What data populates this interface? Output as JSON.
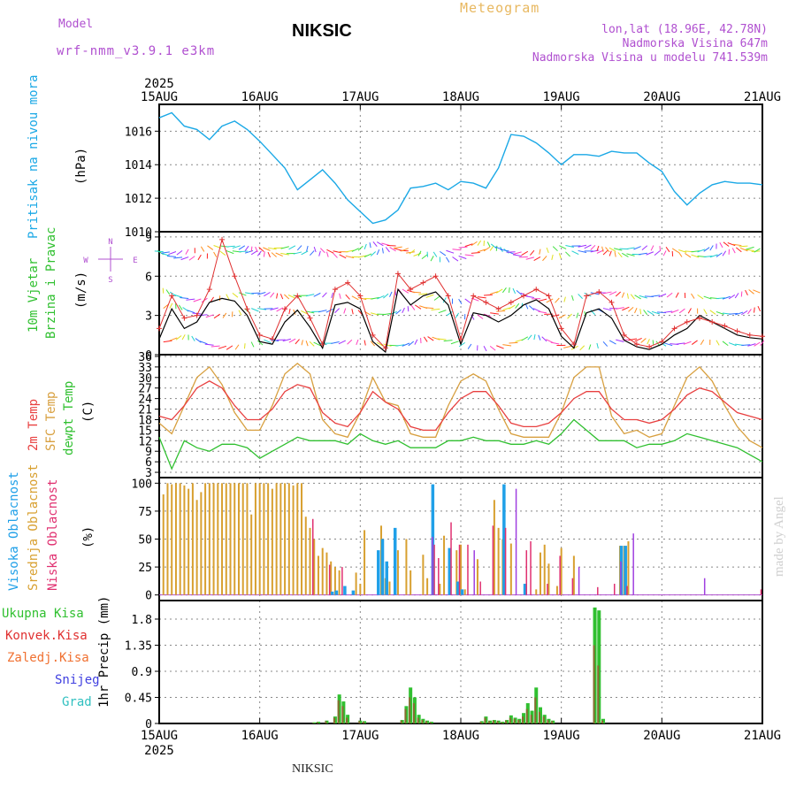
{
  "header": {
    "model_label": "Model",
    "model_name": "wrf-nmm_v3.9.1 e3km",
    "station": "NIKSIC",
    "product": "Meteogram",
    "lonlat": "lon,lat (18.96E, 42.78N)",
    "elevation": "Nadmorska Visina 647m",
    "model_elevation": "Nadmorska Visina u modelu 741.539m"
  },
  "colors": {
    "pressure": "#1aa8e6",
    "wind_speed": "#000000",
    "wind_gust": "#e03030",
    "t2m": "#e84040",
    "tsfc": "#d8a040",
    "dewpt": "#30c030",
    "cloud_high": "#20a0e8",
    "cloud_mid": "#d8a030",
    "cloud_low": "#e03070",
    "precip_total": "#30c030",
    "precip_conv": "#e03030",
    "precip_frozen": "#f07030",
    "precip_snow": "#4040e0",
    "precip_graupel": "#30c0c0"
  },
  "time_axis": {
    "year": "2025",
    "labels": [
      "15AUG",
      "16AUG",
      "17AUG",
      "18AUG",
      "19AUG",
      "20AUG",
      "21AUG"
    ],
    "hours_total": 144
  },
  "footer": "NIKSIC",
  "watermark": "made by Angel",
  "chart_data": [
    {
      "type": "line",
      "id": "pressure",
      "ylabel_main": "Pritisak na nivou mora",
      "ylabel_unit": "(hPa)",
      "ylim": [
        1010,
        1017.6
      ],
      "yticks": [
        "1010",
        "1012",
        "1014",
        "1016"
      ],
      "ytick_values": [
        1010,
        1012,
        1014,
        1016
      ],
      "x": [
        0,
        3,
        6,
        9,
        12,
        15,
        18,
        21,
        24,
        27,
        30,
        33,
        36,
        39,
        42,
        45,
        48,
        51,
        54,
        57,
        60,
        63,
        66,
        69,
        72,
        75,
        78,
        81,
        84,
        87,
        90,
        93,
        96,
        99,
        102,
        105,
        108,
        111,
        114,
        117,
        120,
        123,
        126,
        129,
        132,
        135,
        138,
        141,
        144
      ],
      "values": [
        1016.8,
        1017.1,
        1016.3,
        1016.1,
        1015.5,
        1016.3,
        1016.6,
        1016.1,
        1015.4,
        1014.6,
        1013.8,
        1012.5,
        1013.1,
        1013.7,
        1012.9,
        1011.9,
        1011.2,
        1010.5,
        1010.7,
        1011.3,
        1012.6,
        1012.7,
        1012.9,
        1012.5,
        1013.0,
        1012.9,
        1012.6,
        1013.8,
        1015.8,
        1015.7,
        1015.3,
        1014.7,
        1014.0,
        1014.6,
        1014.6,
        1014.5,
        1014.8,
        1014.7,
        1014.7,
        1014.1,
        1013.6,
        1012.4,
        1011.6,
        1012.3,
        1012.8,
        1013.0,
        1012.9,
        1012.9,
        1012.8
      ]
    },
    {
      "type": "line",
      "id": "wind",
      "ylabel_main": "10m Vjetar",
      "ylabel_sub": "Brzina i Pravac",
      "ylabel_unit": "(m/s)",
      "compass": [
        "N",
        "W",
        "E",
        "S"
      ],
      "ylim": [
        0,
        9.4
      ],
      "yticks": [
        "0",
        "3",
        "6",
        "9"
      ],
      "ytick_values": [
        0,
        3,
        6,
        9
      ],
      "x": [
        0,
        3,
        6,
        9,
        12,
        15,
        18,
        21,
        24,
        27,
        30,
        33,
        36,
        39,
        42,
        45,
        48,
        51,
        54,
        57,
        60,
        63,
        66,
        69,
        72,
        75,
        78,
        81,
        84,
        87,
        90,
        93,
        96,
        99,
        102,
        105,
        108,
        111,
        114,
        117,
        120,
        123,
        126,
        129,
        132,
        135,
        138,
        141,
        144
      ],
      "series": [
        {
          "name": "speed",
          "values": [
            1.2,
            3.5,
            2.0,
            2.5,
            4.0,
            4.3,
            4.1,
            3.0,
            1.0,
            0.8,
            2.5,
            3.4,
            2.1,
            0.5,
            3.8,
            4.0,
            3.5,
            1.0,
            0.2,
            5.0,
            3.8,
            4.5,
            4.8,
            3.8,
            0.8,
            3.2,
            3.0,
            2.5,
            3.0,
            3.8,
            4.2,
            3.5,
            1.4,
            0.5,
            3.2,
            3.5,
            2.8,
            1.1,
            0.6,
            0.4,
            0.8,
            1.5,
            2.0,
            3.0,
            2.5,
            2.0,
            1.5,
            1.3,
            1.2
          ]
        },
        {
          "name": "gust",
          "values": [
            2.0,
            4.5,
            2.8,
            3.0,
            5.0,
            8.8,
            6.0,
            3.5,
            1.5,
            1.2,
            3.5,
            4.5,
            2.8,
            0.8,
            5.0,
            5.5,
            4.5,
            1.5,
            0.5,
            6.2,
            5.0,
            5.5,
            6.0,
            4.5,
            1.2,
            4.5,
            4.0,
            3.5,
            4.0,
            4.5,
            5.0,
            4.5,
            2.0,
            0.8,
            4.5,
            4.8,
            4.0,
            1.5,
            0.8,
            0.6,
            1.0,
            2.0,
            2.5,
            2.8,
            2.5,
            2.2,
            1.8,
            1.5,
            1.4
          ]
        }
      ]
    },
    {
      "type": "line",
      "id": "temperature",
      "ylabel_lines": [
        "2m Temp",
        "SFC Temp",
        "dewpt Temp"
      ],
      "ylabel_unit": "(C)",
      "ylim": [
        1.5,
        36.5
      ],
      "yticks": [
        "3",
        "6",
        "9",
        "12",
        "15",
        "18",
        "21",
        "24",
        "27",
        "30",
        "33",
        "36"
      ],
      "ytick_values": [
        3,
        6,
        9,
        12,
        15,
        18,
        21,
        24,
        27,
        30,
        33,
        36
      ],
      "x": [
        0,
        3,
        6,
        9,
        12,
        15,
        18,
        21,
        24,
        27,
        30,
        33,
        36,
        39,
        42,
        45,
        48,
        51,
        54,
        57,
        60,
        63,
        66,
        69,
        72,
        75,
        78,
        81,
        84,
        87,
        90,
        93,
        96,
        99,
        102,
        105,
        108,
        111,
        114,
        117,
        120,
        123,
        126,
        129,
        132,
        135,
        138,
        141,
        144
      ],
      "series": [
        {
          "name": "t2m",
          "values": [
            19,
            18,
            22,
            27,
            29,
            27,
            22,
            18,
            18,
            21,
            26,
            28,
            27,
            20,
            17,
            16,
            20,
            26,
            23,
            21,
            16,
            15,
            15,
            20,
            24,
            26,
            26,
            22,
            17,
            16,
            16,
            17,
            20,
            24,
            26,
            26,
            21,
            18,
            18,
            17,
            18,
            21,
            25,
            27,
            26,
            23,
            20,
            19,
            18
          ]
        },
        {
          "name": "tsfc",
          "values": [
            17,
            14,
            22,
            30,
            33,
            28,
            20,
            15,
            15,
            22,
            31,
            34,
            31,
            18,
            14,
            13,
            20,
            30,
            23,
            22,
            14,
            13,
            13,
            22,
            29,
            31,
            29,
            21,
            14,
            13,
            13,
            13,
            20,
            30,
            33,
            33,
            19,
            14,
            15,
            13,
            14,
            22,
            30,
            33,
            29,
            22,
            16,
            12,
            10
          ]
        },
        {
          "name": "dewpt",
          "values": [
            13,
            4,
            12,
            10,
            9,
            11,
            11,
            10,
            7,
            9,
            11,
            13,
            12,
            12,
            12,
            11,
            14,
            12,
            11,
            12,
            10,
            10,
            10,
            12,
            12,
            13,
            12,
            12,
            11,
            11,
            12,
            11,
            14,
            18,
            15,
            12,
            12,
            12,
            10,
            11,
            11,
            12,
            14,
            13,
            12,
            11,
            10,
            8,
            6
          ]
        }
      ]
    },
    {
      "type": "bar",
      "id": "cloud",
      "ylabel_lines": [
        "Visoka Oblacnost",
        "Srednja Oblacnost",
        "Niska Oblacnost"
      ],
      "ylabel_unit": "(%)",
      "ylim": [
        -5,
        105
      ],
      "yticks": [
        "0",
        "25",
        "50",
        "75",
        "100"
      ],
      "ytick_values": [
        0,
        25,
        50,
        75,
        100
      ],
      "series": [
        {
          "name": "mid",
          "x": [
            1,
            2,
            3,
            4,
            5,
            6,
            7,
            8,
            9,
            10,
            11,
            12,
            13,
            14,
            15,
            16,
            17,
            18,
            19,
            20,
            21,
            22,
            23,
            24,
            25,
            26,
            27,
            28,
            29,
            30,
            31,
            32,
            33,
            34,
            35,
            36,
            37,
            38,
            39,
            40,
            41,
            42,
            43,
            47,
            48,
            49,
            53,
            54,
            55,
            57,
            59,
            60,
            63,
            64,
            67,
            68,
            71,
            72,
            73,
            76,
            80,
            81,
            82,
            84,
            90,
            91,
            92,
            93,
            95,
            96,
            99,
            110,
            111,
            112
          ],
          "values": [
            90,
            100,
            99,
            100,
            100,
            98,
            95,
            100,
            85,
            92,
            100,
            100,
            100,
            100,
            100,
            100,
            100,
            100,
            100,
            100,
            100,
            72,
            100,
            100,
            100,
            100,
            95,
            100,
            100,
            100,
            100,
            98,
            100,
            100,
            70,
            60,
            50,
            35,
            42,
            38,
            30,
            25,
            22,
            20,
            10,
            58,
            62,
            15,
            12,
            40,
            50,
            22,
            36,
            15,
            10,
            53,
            40,
            45,
            5,
            32,
            85,
            60,
            50,
            46,
            5,
            38,
            45,
            28,
            8,
            42,
            35,
            44,
            44,
            48
          ]
        },
        {
          "name": "high",
          "x": [
            41,
            42,
            44,
            46,
            52,
            53,
            54,
            56,
            65,
            69,
            71,
            72,
            82,
            87,
            110,
            111
          ],
          "values": [
            3,
            4,
            8,
            4,
            40,
            50,
            30,
            60,
            99,
            42,
            12,
            5,
            99,
            10,
            44,
            44
          ]
        },
        {
          "name": "low",
          "x": [
            37,
            41,
            44,
            66,
            67,
            70,
            72,
            74,
            77,
            80,
            83,
            88,
            89,
            93,
            96,
            99,
            105,
            109,
            112,
            144
          ],
          "values": [
            68,
            27,
            25,
            45,
            33,
            65,
            45,
            45,
            12,
            62,
            60,
            40,
            48,
            10,
            35,
            15,
            7,
            10,
            8,
            5
          ]
        },
        {
          "name": "lowpurple",
          "x": [
            65,
            75,
            85,
            100,
            110,
            113,
            130
          ],
          "values": [
            52,
            40,
            95,
            25,
            30,
            55,
            15
          ]
        }
      ]
    },
    {
      "type": "bar",
      "id": "precip",
      "ylabel": "1hr Precip (mm)",
      "legend": [
        "Ukupna Kisa",
        "Konvek.Kisa",
        "Zaledj.Kisa",
        "Snijeg",
        "Grad"
      ],
      "ylim": [
        0,
        2.12
      ],
      "yticks": [
        "0",
        "0.45",
        "0.9",
        "1.35",
        "1.8"
      ],
      "ytick_values": [
        0,
        0.45,
        0.9,
        1.35,
        1.8
      ],
      "x": [
        37,
        38,
        40,
        42,
        43,
        44,
        45,
        48,
        49,
        58,
        59,
        60,
        61,
        62,
        63,
        64,
        65,
        77,
        78,
        79,
        80,
        81,
        82,
        83,
        84,
        85,
        86,
        87,
        88,
        89,
        90,
        91,
        92,
        93,
        94,
        104,
        105,
        106
      ],
      "series": [
        {
          "name": "total",
          "values": [
            0.02,
            0.03,
            0.05,
            0.12,
            0.5,
            0.38,
            0.15,
            0.05,
            0.04,
            0.06,
            0.3,
            0.62,
            0.45,
            0.15,
            0.08,
            0.05,
            0.03,
            0.04,
            0.12,
            0.05,
            0.06,
            0.05,
            0.03,
            0.06,
            0.14,
            0.1,
            0.08,
            0.18,
            0.35,
            0.22,
            0.62,
            0.28,
            0.15,
            0.08,
            0.05,
            2.0,
            1.95,
            0.08
          ]
        },
        {
          "name": "conv",
          "values": [
            0.01,
            0.02,
            0.04,
            0.1,
            0.4,
            0.3,
            0.1,
            0.04,
            0.03,
            0.05,
            0.25,
            0.45,
            0.35,
            0.1,
            0.06,
            0.04,
            0.02,
            0.03,
            0.1,
            0.04,
            0.05,
            0.04,
            0.02,
            0.05,
            0.1,
            0.08,
            0.06,
            0.12,
            0.25,
            0.15,
            0.45,
            0.2,
            0.12,
            0.06,
            0.04,
            1.35,
            1.0,
            0.05
          ]
        }
      ]
    }
  ]
}
